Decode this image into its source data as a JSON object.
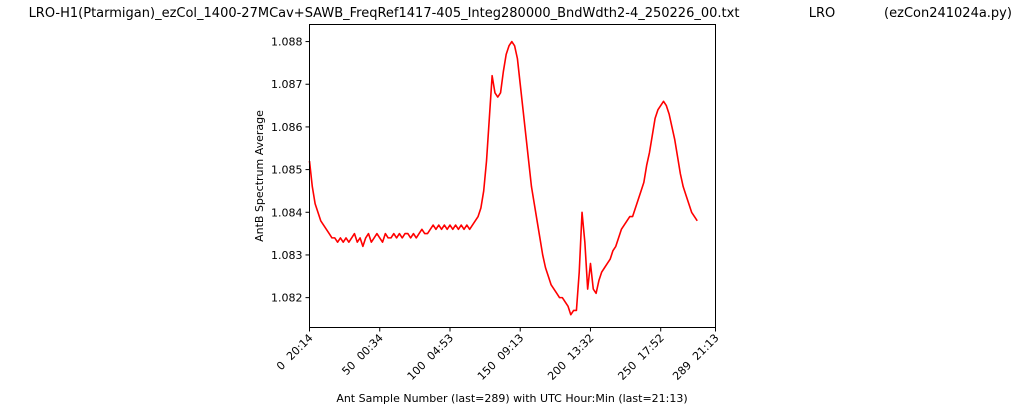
{
  "chart_data": {
    "type": "line",
    "title_parts": [
      "LRO-H1(Ptarmigan)_ezCol_1400-27MCav+SAWB_FreqRef1417-405_Integ280000_BndWdth2-4_250226_00.txt",
      "LRO",
      "(ezCon241024a.py)"
    ],
    "xlabel": "Ant Sample Number (last=289) with UTC Hour:Min (last=21:13)",
    "ylabel": "AntB Spectrum Average",
    "xlim": [
      0,
      289
    ],
    "ylim": [
      1.0813,
      1.0884
    ],
    "x_ticks": [
      {
        "value": 0,
        "label": "0  20:14"
      },
      {
        "value": 50,
        "label": "50  00:34"
      },
      {
        "value": 100,
        "label": "100  04:53"
      },
      {
        "value": 150,
        "label": "150  09:13"
      },
      {
        "value": 200,
        "label": "200  13:32"
      },
      {
        "value": 250,
        "label": "250  17:52"
      },
      {
        "value": 289,
        "label": "289  21:13"
      }
    ],
    "y_ticks": [
      {
        "value": 1.082,
        "label": "1.082"
      },
      {
        "value": 1.083,
        "label": "1.083"
      },
      {
        "value": 1.084,
        "label": "1.084"
      },
      {
        "value": 1.085,
        "label": "1.085"
      },
      {
        "value": 1.086,
        "label": "1.086"
      },
      {
        "value": 1.087,
        "label": "1.087"
      },
      {
        "value": 1.088,
        "label": "1.088"
      }
    ],
    "grid": false,
    "legend": "none",
    "series": [
      {
        "color": "#ff0000",
        "points": [
          [
            0,
            1.0852
          ],
          [
            2,
            1.0846
          ],
          [
            4,
            1.0842
          ],
          [
            6,
            1.084
          ],
          [
            8,
            1.0838
          ],
          [
            10,
            1.0837
          ],
          [
            12,
            1.0836
          ],
          [
            14,
            1.0835
          ],
          [
            16,
            1.0834
          ],
          [
            18,
            1.0834
          ],
          [
            20,
            1.0833
          ],
          [
            22,
            1.0834
          ],
          [
            24,
            1.0833
          ],
          [
            26,
            1.0834
          ],
          [
            28,
            1.0833
          ],
          [
            30,
            1.0834
          ],
          [
            32,
            1.0835
          ],
          [
            34,
            1.0833
          ],
          [
            36,
            1.0834
          ],
          [
            38,
            1.0832
          ],
          [
            40,
            1.0834
          ],
          [
            42,
            1.0835
          ],
          [
            44,
            1.0833
          ],
          [
            46,
            1.0834
          ],
          [
            48,
            1.0835
          ],
          [
            50,
            1.0834
          ],
          [
            52,
            1.0833
          ],
          [
            54,
            1.0835
          ],
          [
            56,
            1.0834
          ],
          [
            58,
            1.0834
          ],
          [
            60,
            1.0835
          ],
          [
            62,
            1.0834
          ],
          [
            64,
            1.0835
          ],
          [
            66,
            1.0834
          ],
          [
            68,
            1.0835
          ],
          [
            70,
            1.0835
          ],
          [
            72,
            1.0834
          ],
          [
            74,
            1.0835
          ],
          [
            76,
            1.0834
          ],
          [
            78,
            1.0835
          ],
          [
            80,
            1.0836
          ],
          [
            82,
            1.0835
          ],
          [
            84,
            1.0835
          ],
          [
            86,
            1.0836
          ],
          [
            88,
            1.0837
          ],
          [
            90,
            1.0836
          ],
          [
            92,
            1.0837
          ],
          [
            94,
            1.0836
          ],
          [
            96,
            1.0837
          ],
          [
            98,
            1.0836
          ],
          [
            100,
            1.0837
          ],
          [
            102,
            1.0836
          ],
          [
            104,
            1.0837
          ],
          [
            106,
            1.0836
          ],
          [
            108,
            1.0837
          ],
          [
            110,
            1.0836
          ],
          [
            112,
            1.0837
          ],
          [
            114,
            1.0836
          ],
          [
            116,
            1.0837
          ],
          [
            118,
            1.0838
          ],
          [
            120,
            1.0839
          ],
          [
            122,
            1.0841
          ],
          [
            124,
            1.0845
          ],
          [
            126,
            1.0852
          ],
          [
            128,
            1.0862
          ],
          [
            130,
            1.0872
          ],
          [
            132,
            1.0868
          ],
          [
            134,
            1.0867
          ],
          [
            136,
            1.0868
          ],
          [
            138,
            1.0873
          ],
          [
            140,
            1.0877
          ],
          [
            142,
            1.0879
          ],
          [
            144,
            1.088
          ],
          [
            146,
            1.0879
          ],
          [
            148,
            1.0876
          ],
          [
            150,
            1.087
          ],
          [
            152,
            1.0864
          ],
          [
            154,
            1.0858
          ],
          [
            156,
            1.0852
          ],
          [
            158,
            1.0846
          ],
          [
            160,
            1.0842
          ],
          [
            162,
            1.0838
          ],
          [
            164,
            1.0834
          ],
          [
            166,
            1.083
          ],
          [
            168,
            1.0827
          ],
          [
            170,
            1.0825
          ],
          [
            172,
            1.0823
          ],
          [
            174,
            1.0822
          ],
          [
            176,
            1.0821
          ],
          [
            178,
            1.082
          ],
          [
            180,
            1.082
          ],
          [
            182,
            1.0819
          ],
          [
            184,
            1.0818
          ],
          [
            186,
            1.0816
          ],
          [
            188,
            1.0817
          ],
          [
            190,
            1.0817
          ],
          [
            192,
            1.0826
          ],
          [
            194,
            1.084
          ],
          [
            196,
            1.0833
          ],
          [
            198,
            1.0822
          ],
          [
            200,
            1.0828
          ],
          [
            202,
            1.0822
          ],
          [
            204,
            1.0821
          ],
          [
            206,
            1.0824
          ],
          [
            208,
            1.0826
          ],
          [
            210,
            1.0827
          ],
          [
            212,
            1.0828
          ],
          [
            214,
            1.0829
          ],
          [
            216,
            1.0831
          ],
          [
            218,
            1.0832
          ],
          [
            220,
            1.0834
          ],
          [
            222,
            1.0836
          ],
          [
            224,
            1.0837
          ],
          [
            226,
            1.0838
          ],
          [
            228,
            1.0839
          ],
          [
            230,
            1.0839
          ],
          [
            232,
            1.0841
          ],
          [
            234,
            1.0843
          ],
          [
            236,
            1.0845
          ],
          [
            238,
            1.0847
          ],
          [
            240,
            1.0851
          ],
          [
            242,
            1.0854
          ],
          [
            244,
            1.0858
          ],
          [
            246,
            1.0862
          ],
          [
            248,
            1.0864
          ],
          [
            250,
            1.0865
          ],
          [
            252,
            1.0866
          ],
          [
            254,
            1.0865
          ],
          [
            256,
            1.0863
          ],
          [
            258,
            1.086
          ],
          [
            260,
            1.0857
          ],
          [
            262,
            1.0853
          ],
          [
            264,
            1.0849
          ],
          [
            266,
            1.0846
          ],
          [
            268,
            1.0844
          ],
          [
            270,
            1.0842
          ],
          [
            272,
            1.084
          ],
          [
            274,
            1.0839
          ],
          [
            276,
            1.0838
          ]
        ]
      }
    ]
  }
}
